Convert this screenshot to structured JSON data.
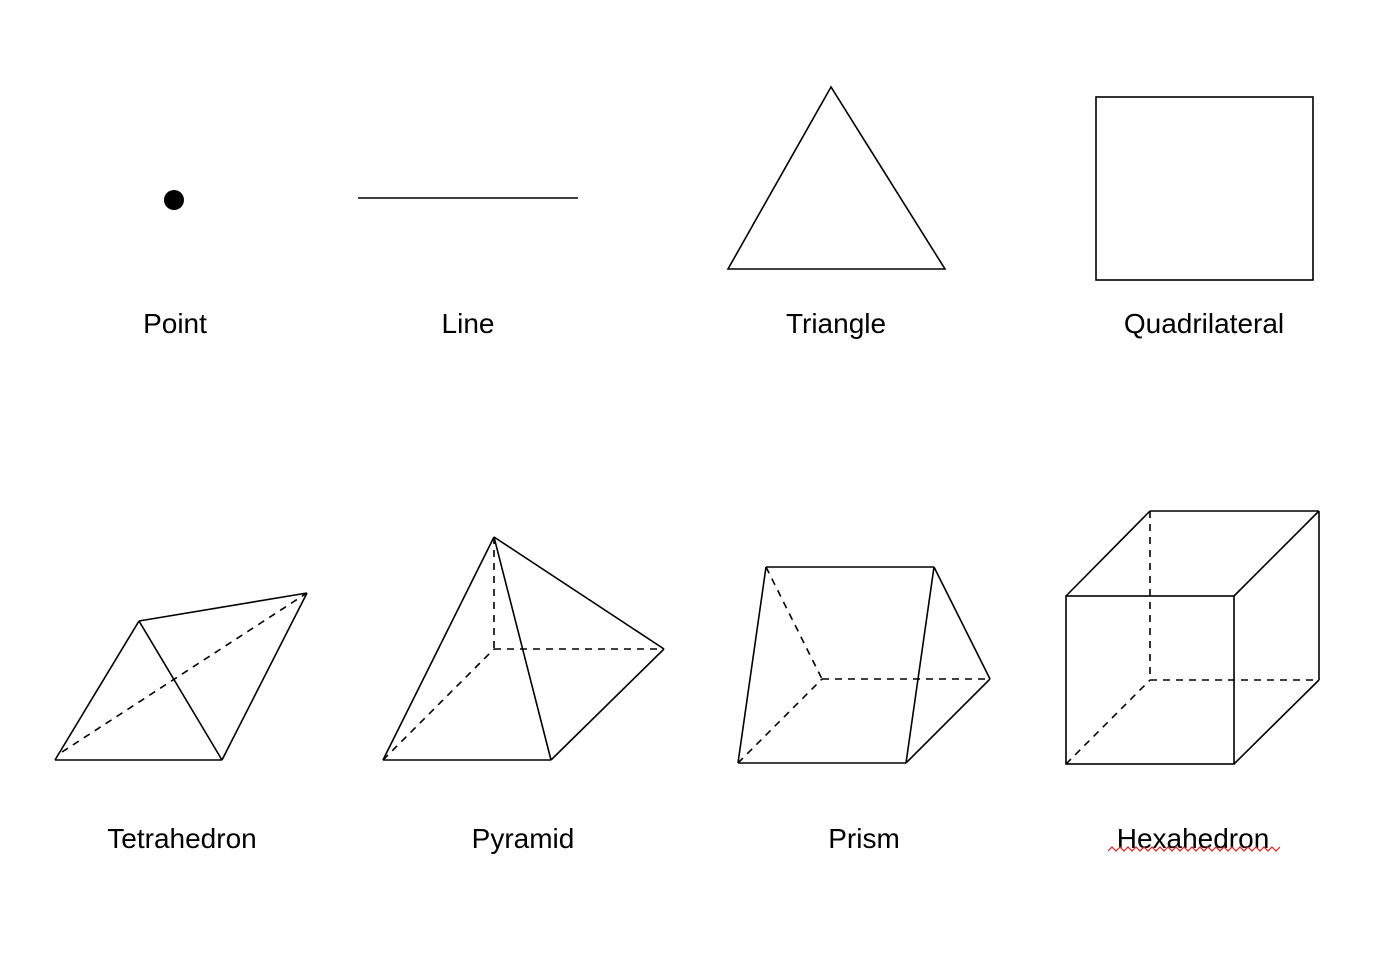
{
  "diagram": {
    "labels": {
      "point": "Point",
      "line": "Line",
      "triangle": "Triangle",
      "quadrilateral": "Quadrilateral",
      "tetrahedron": "Tetrahedron",
      "pyramid": "Pyramid",
      "prism": "Prism",
      "hexahedron": "Hexahedron"
    },
    "colors": {
      "stroke": "#000000",
      "spellcheck_underline": "#e02020"
    }
  }
}
